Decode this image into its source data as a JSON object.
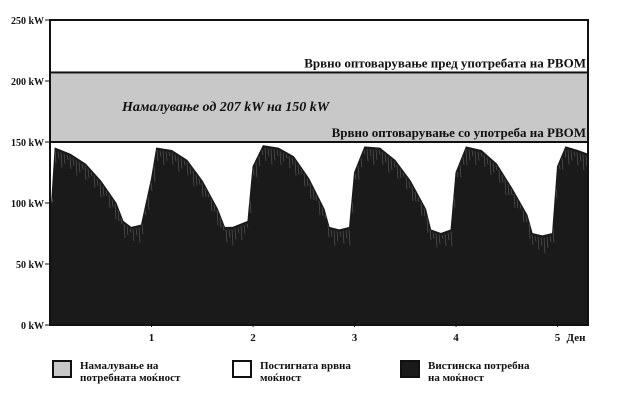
{
  "chart_data": {
    "type": "area",
    "y_unit": "kW",
    "y_ticks": [
      "250 kW",
      "200 kW",
      "150 kW",
      "100 kW",
      "50 kW",
      "0 kW"
    ],
    "y_tick_values": [
      250,
      200,
      150,
      100,
      50,
      0
    ],
    "ylim": [
      0,
      250
    ],
    "x_ticks": [
      "1",
      "2",
      "3",
      "4",
      "5"
    ],
    "x_tick_values": [
      1,
      2,
      3,
      4,
      5
    ],
    "xlim": [
      0,
      5.3
    ],
    "xlabel": "Ден",
    "peak_without": 207,
    "peak_with": 150,
    "band_label": "Намалување од 207 kW на 150 kW",
    "line_label_top": "Врвно оптоварување пред употребата на РВОМ",
    "line_label_bottom": "Врвно оптоварување со употреба на РВОМ",
    "series": [
      {
        "name": "Вистинска потребна на моќност",
        "x": [
          0.0,
          0.05,
          0.2,
          0.35,
          0.5,
          0.65,
          0.72,
          0.8,
          0.9,
          1.0,
          1.05,
          1.2,
          1.35,
          1.5,
          1.65,
          1.72,
          1.8,
          1.95,
          2.0,
          2.1,
          2.25,
          2.4,
          2.55,
          2.7,
          2.75,
          2.85,
          2.95,
          3.0,
          3.1,
          3.25,
          3.4,
          3.55,
          3.7,
          3.75,
          3.85,
          3.95,
          4.0,
          4.1,
          4.25,
          4.4,
          4.55,
          4.7,
          4.75,
          4.85,
          4.95,
          5.0,
          5.08,
          5.2,
          5.3
        ],
        "values": [
          80,
          145,
          140,
          132,
          118,
          100,
          85,
          80,
          82,
          120,
          145,
          143,
          135,
          118,
          95,
          80,
          80,
          85,
          130,
          147,
          145,
          138,
          120,
          95,
          80,
          78,
          80,
          125,
          146,
          145,
          135,
          118,
          95,
          78,
          75,
          78,
          125,
          146,
          143,
          132,
          112,
          90,
          75,
          73,
          75,
          130,
          146,
          143,
          140
        ]
      }
    ],
    "colors": {
      "band": "#c8c8c8",
      "actual": "#1a1a1a",
      "frame": "#111111"
    }
  },
  "legend": [
    {
      "label": "Намалување на\nпотребната моќност",
      "color": "#c8c8c8"
    },
    {
      "label": "Постигната врвна\nмоќност",
      "color": "#ffffff"
    },
    {
      "label": "Вистинска потребна\nна моќност",
      "color": "#1a1a1a"
    }
  ]
}
